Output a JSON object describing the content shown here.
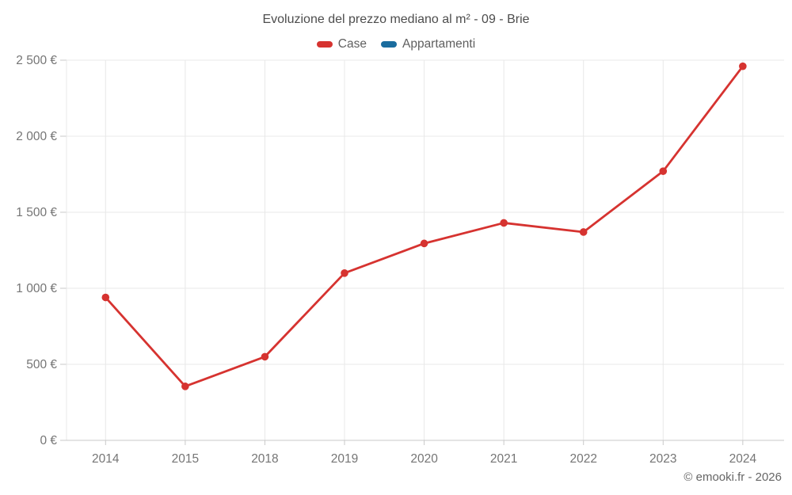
{
  "header": {
    "title": "Evoluzione del prezzo mediano al m² - 09 - Brie"
  },
  "legend": {
    "items": [
      {
        "label": "Case",
        "color": "#d63330"
      },
      {
        "label": "Appartamenti",
        "color": "#1a6c9e"
      }
    ]
  },
  "footer": {
    "credit": "© emooki.fr - 2026"
  },
  "chart_data": {
    "type": "line",
    "title": "Evoluzione del prezzo mediano al m² - 09 - Brie",
    "categories": [
      "2014",
      "2015",
      "2018",
      "2019",
      "2020",
      "2021",
      "2022",
      "2023",
      "2024"
    ],
    "series": [
      {
        "name": "Case",
        "color": "#d63330",
        "values": [
          940,
          355,
          550,
          1100,
          1295,
          1430,
          1370,
          1770,
          2460
        ]
      },
      {
        "name": "Appartamenti",
        "color": "#1a6c9e",
        "values": []
      }
    ],
    "xlabel": "",
    "ylabel": "",
    "ylim": [
      0,
      2500
    ],
    "ytick_step": 500,
    "ytick_labels": [
      "0 €",
      "500 €",
      "1 000 €",
      "1 500 €",
      "2 000 €",
      "2 500 €"
    ],
    "grid": true,
    "legend_position": "top",
    "marker": "circle",
    "colors": {
      "grid": "#e8e8e8",
      "axis": "#c9c9c9",
      "tick_label": "#757575"
    }
  }
}
